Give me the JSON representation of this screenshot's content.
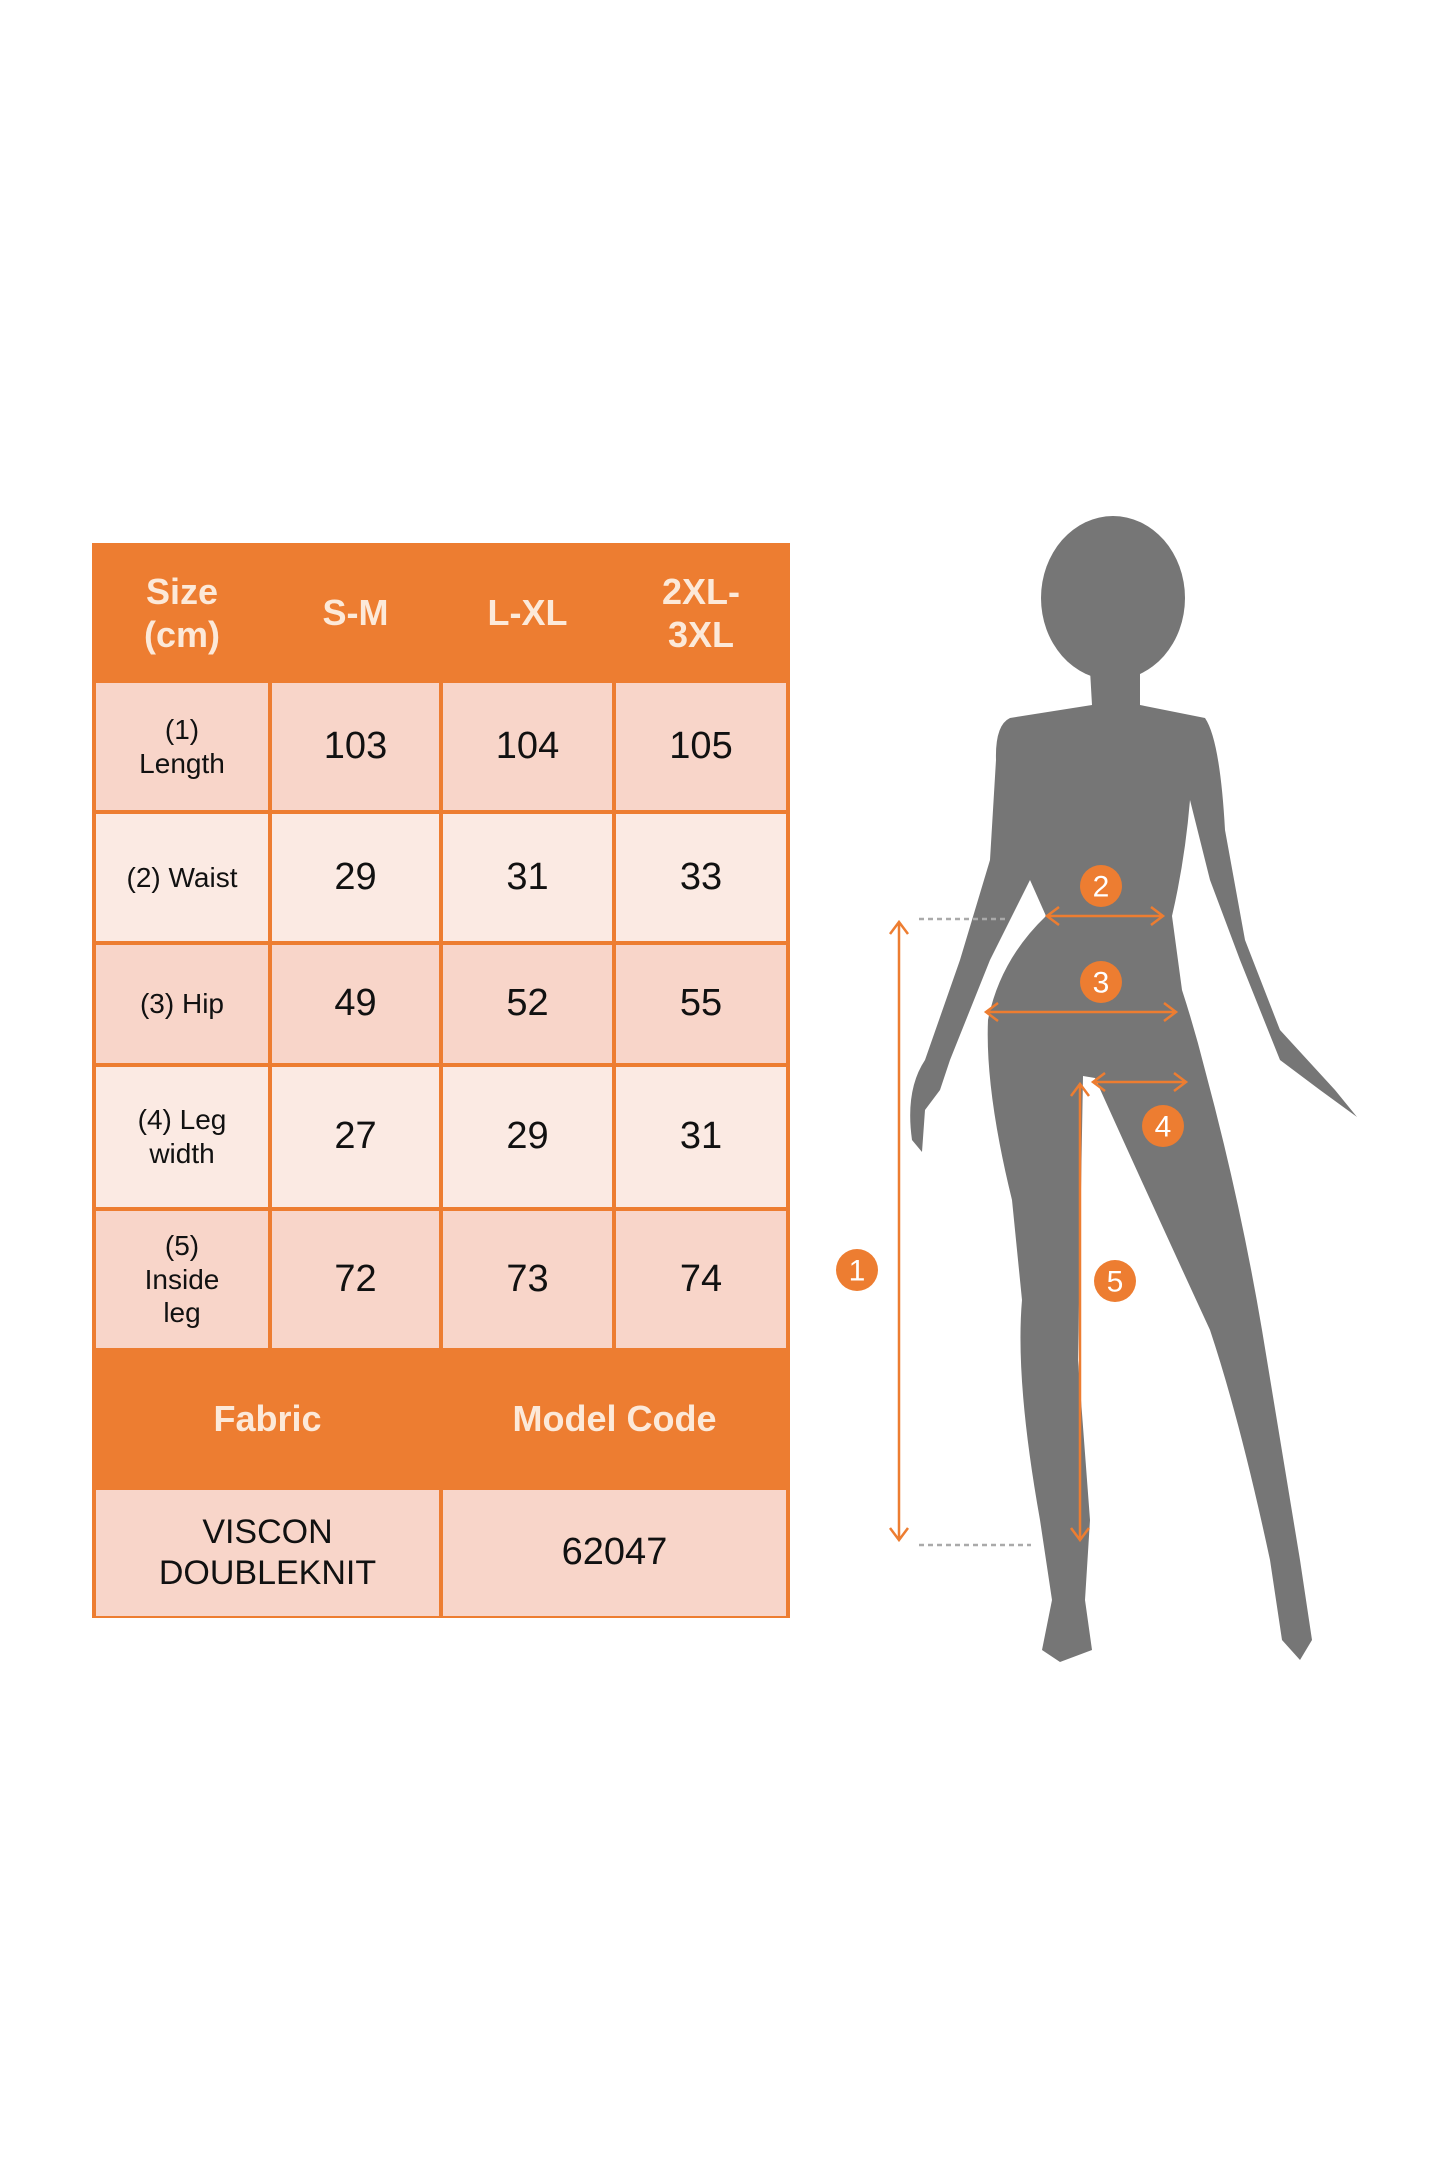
{
  "colors": {
    "accent": "#ED7D31",
    "cell_dark": "#F8D5C9",
    "cell_light": "#FBEAE3",
    "silhouette": "#767676"
  },
  "table": {
    "header": [
      "Size (cm)",
      "S-M",
      "L-XL",
      "2XL-3XL"
    ],
    "rows": [
      {
        "label": "(1) Length",
        "values": [
          "103",
          "104",
          "105"
        ]
      },
      {
        "label": "(2) Waist",
        "values": [
          "29",
          "31",
          "33"
        ]
      },
      {
        "label": "(3) Hip",
        "values": [
          "49",
          "52",
          "55"
        ]
      },
      {
        "label": "(4) Leg width",
        "values": [
          "27",
          "29",
          "31"
        ]
      },
      {
        "label": "(5) Inside leg",
        "values": [
          "72",
          "73",
          "74"
        ]
      }
    ],
    "fabric_header": "Fabric",
    "model_code_header": "Model Code",
    "fabric": "VISCON DOUBLEKNIT",
    "model_code": "62047"
  },
  "figure": {
    "badges": [
      "1",
      "2",
      "3",
      "4",
      "5"
    ]
  }
}
